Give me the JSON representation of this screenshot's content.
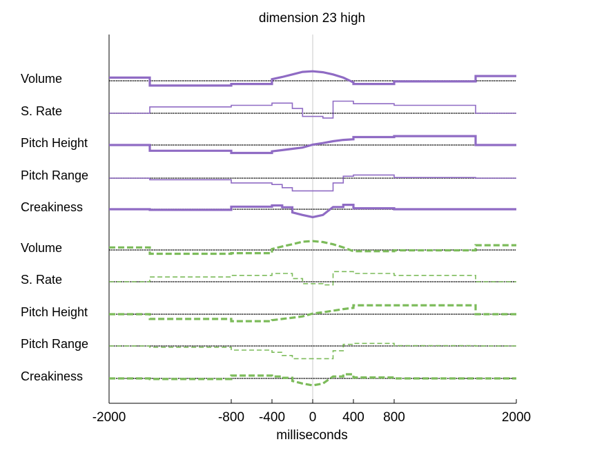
{
  "chart_data": {
    "type": "line",
    "title": "dimension 23 high",
    "xlabel": "milliseconds",
    "ylabel": "",
    "xlim": [
      -2000,
      2000
    ],
    "xticks": [
      -2000,
      -800,
      -400,
      0,
      400,
      800,
      2000
    ],
    "xtick_labels": [
      "-2000",
      "-800",
      "-400",
      "0",
      "400",
      "800",
      "2000"
    ],
    "center_line_x": 0,
    "grid": false,
    "legend": "none",
    "colors": {
      "upper": "#8f6bc4",
      "lower": "#7cbb5a",
      "baseline": "#000000",
      "center": "#c8c8c8"
    },
    "row_labels": [
      "Volume",
      "S. Rate",
      "Pitch Height",
      "Pitch Range",
      "Creakiness",
      "Volume",
      "S. Rate",
      "Pitch Height",
      "Pitch Range",
      "Creakiness"
    ],
    "series": [
      {
        "group": "upper",
        "style": "thick",
        "points": [
          [
            -2000,
            1.0
          ],
          [
            -1600,
            1.0
          ],
          [
            -1600,
            -1.5
          ],
          [
            -800,
            -1.5
          ],
          [
            -800,
            -1.0
          ],
          [
            -400,
            -1.0
          ],
          [
            -400,
            0.5
          ],
          [
            -300,
            1.2
          ],
          [
            -200,
            2.0
          ],
          [
            -100,
            2.8
          ],
          [
            0,
            3.0
          ],
          [
            100,
            2.7
          ],
          [
            200,
            2.0
          ],
          [
            300,
            1.0
          ],
          [
            400,
            -0.5
          ],
          [
            400,
            -1.0
          ],
          [
            800,
            -1.0
          ],
          [
            800,
            -0.2
          ],
          [
            1600,
            -0.2
          ],
          [
            1600,
            1.5
          ],
          [
            2000,
            1.5
          ]
        ]
      },
      {
        "group": "upper",
        "style": "thin",
        "points": [
          [
            -2000,
            0
          ],
          [
            -1600,
            0
          ],
          [
            -1600,
            2.0
          ],
          [
            -800,
            2.0
          ],
          [
            -800,
            2.5
          ],
          [
            -400,
            2.5
          ],
          [
            -400,
            3.2
          ],
          [
            -200,
            3.2
          ],
          [
            -200,
            1.5
          ],
          [
            -100,
            1.5
          ],
          [
            -100,
            -1.0
          ],
          [
            0,
            -1.0
          ],
          [
            100,
            -1.0
          ],
          [
            100,
            -1.5
          ],
          [
            200,
            -1.5
          ],
          [
            200,
            3.8
          ],
          [
            400,
            3.8
          ],
          [
            400,
            3.0
          ],
          [
            800,
            3.0
          ],
          [
            800,
            2.5
          ],
          [
            1600,
            2.5
          ],
          [
            1600,
            0
          ],
          [
            2000,
            0
          ]
        ]
      },
      {
        "group": "upper",
        "style": "thick",
        "points": [
          [
            -2000,
            0
          ],
          [
            -1600,
            0
          ],
          [
            -1600,
            -1.8
          ],
          [
            -800,
            -1.8
          ],
          [
            -800,
            -2.5
          ],
          [
            -400,
            -2.5
          ],
          [
            -400,
            -2.0
          ],
          [
            -300,
            -1.6
          ],
          [
            -200,
            -1.2
          ],
          [
            -100,
            -0.8
          ],
          [
            0,
            0.1
          ],
          [
            100,
            0.6
          ],
          [
            200,
            1.2
          ],
          [
            300,
            1.6
          ],
          [
            400,
            1.8
          ],
          [
            400,
            2.5
          ],
          [
            800,
            2.5
          ],
          [
            800,
            2.8
          ],
          [
            1600,
            2.8
          ],
          [
            1600,
            0
          ],
          [
            2000,
            0
          ]
        ]
      },
      {
        "group": "upper",
        "style": "thin",
        "points": [
          [
            -2000,
            0
          ],
          [
            -1600,
            0
          ],
          [
            -1600,
            -0.5
          ],
          [
            -800,
            -0.5
          ],
          [
            -800,
            -1.5
          ],
          [
            -400,
            -1.5
          ],
          [
            -400,
            -2.0
          ],
          [
            -300,
            -2.0
          ],
          [
            -300,
            -3.0
          ],
          [
            -200,
            -3.0
          ],
          [
            -200,
            -4.0
          ],
          [
            0,
            -4.0
          ],
          [
            200,
            -4.0
          ],
          [
            200,
            -1.5
          ],
          [
            300,
            -1.5
          ],
          [
            300,
            0.6
          ],
          [
            400,
            0.6
          ],
          [
            400,
            1.0
          ],
          [
            800,
            1.0
          ],
          [
            800,
            0.2
          ],
          [
            1600,
            0.2
          ],
          [
            1600,
            0
          ],
          [
            2000,
            0
          ]
        ]
      },
      {
        "group": "upper",
        "style": "thick",
        "points": [
          [
            -2000,
            0
          ],
          [
            -1600,
            0
          ],
          [
            -1600,
            -0.2
          ],
          [
            -800,
            -0.2
          ],
          [
            -800,
            0.8
          ],
          [
            -400,
            0.8
          ],
          [
            -400,
            1.2
          ],
          [
            -300,
            1.2
          ],
          [
            -300,
            0.6
          ],
          [
            -200,
            0.6
          ],
          [
            -200,
            -1.0
          ],
          [
            -100,
            -1.8
          ],
          [
            0,
            -2.5
          ],
          [
            100,
            -1.8
          ],
          [
            200,
            0.7
          ],
          [
            300,
            0.7
          ],
          [
            300,
            1.4
          ],
          [
            400,
            1.4
          ],
          [
            400,
            0.3
          ],
          [
            800,
            0.3
          ],
          [
            800,
            0
          ],
          [
            2000,
            0
          ]
        ]
      },
      {
        "group": "lower",
        "style": "thick",
        "points": [
          [
            -2000,
            0.8
          ],
          [
            -1600,
            0.8
          ],
          [
            -1600,
            -1.2
          ],
          [
            -800,
            -1.2
          ],
          [
            -800,
            -1.0
          ],
          [
            -400,
            -1.0
          ],
          [
            -400,
            0.3
          ],
          [
            -300,
            1.1
          ],
          [
            -200,
            1.8
          ],
          [
            -100,
            2.6
          ],
          [
            0,
            2.8
          ],
          [
            100,
            2.5
          ],
          [
            200,
            1.8
          ],
          [
            300,
            0.8
          ],
          [
            400,
            -0.4
          ],
          [
            800,
            -0.4
          ],
          [
            800,
            -0.1
          ],
          [
            1600,
            -0.1
          ],
          [
            1600,
            1.5
          ],
          [
            2000,
            1.5
          ]
        ]
      },
      {
        "group": "lower",
        "style": "thin",
        "points": [
          [
            -2000,
            0
          ],
          [
            -1600,
            0
          ],
          [
            -1600,
            1.5
          ],
          [
            -800,
            1.5
          ],
          [
            -800,
            2.0
          ],
          [
            -400,
            2.0
          ],
          [
            -400,
            2.6
          ],
          [
            -200,
            2.6
          ],
          [
            -200,
            1.0
          ],
          [
            -100,
            1.0
          ],
          [
            -100,
            -0.6
          ],
          [
            0,
            -0.6
          ],
          [
            100,
            -0.6
          ],
          [
            100,
            -1.0
          ],
          [
            200,
            -1.0
          ],
          [
            200,
            3.2
          ],
          [
            400,
            3.2
          ],
          [
            400,
            2.6
          ],
          [
            800,
            2.6
          ],
          [
            800,
            2.0
          ],
          [
            1600,
            2.0
          ],
          [
            1600,
            0
          ],
          [
            2000,
            0
          ]
        ]
      },
      {
        "group": "lower",
        "style": "thick",
        "points": [
          [
            -2000,
            0
          ],
          [
            -1600,
            0
          ],
          [
            -1600,
            -1.5
          ],
          [
            -800,
            -1.5
          ],
          [
            -800,
            -2.2
          ],
          [
            -400,
            -2.2
          ],
          [
            -400,
            -1.9
          ],
          [
            -300,
            -1.5
          ],
          [
            -200,
            -1.1
          ],
          [
            -100,
            -0.7
          ],
          [
            0,
            0.2
          ],
          [
            100,
            0.6
          ],
          [
            200,
            1.1
          ],
          [
            300,
            1.6
          ],
          [
            400,
            2.0
          ],
          [
            400,
            2.8
          ],
          [
            800,
            2.8
          ],
          [
            1600,
            2.8
          ],
          [
            1600,
            0
          ],
          [
            2000,
            0
          ]
        ]
      },
      {
        "group": "lower",
        "style": "thin",
        "points": [
          [
            -2000,
            0
          ],
          [
            -1600,
            0
          ],
          [
            -1600,
            -0.4
          ],
          [
            -800,
            -0.4
          ],
          [
            -800,
            -1.3
          ],
          [
            -400,
            -1.3
          ],
          [
            -400,
            -2.0
          ],
          [
            -300,
            -2.0
          ],
          [
            -300,
            -3.0
          ],
          [
            -200,
            -3.0
          ],
          [
            -200,
            -4.0
          ],
          [
            0,
            -4.0
          ],
          [
            200,
            -4.0
          ],
          [
            200,
            -1.5
          ],
          [
            300,
            -1.5
          ],
          [
            300,
            0.5
          ],
          [
            400,
            0.5
          ],
          [
            400,
            0.8
          ],
          [
            800,
            0.8
          ],
          [
            800,
            0.1
          ],
          [
            1600,
            0.1
          ],
          [
            1600,
            0
          ],
          [
            2000,
            0
          ]
        ]
      },
      {
        "group": "lower",
        "style": "thick",
        "points": [
          [
            -2000,
            0
          ],
          [
            -1600,
            0
          ],
          [
            -1600,
            -0.2
          ],
          [
            -800,
            -0.2
          ],
          [
            -800,
            0.9
          ],
          [
            -400,
            0.9
          ],
          [
            -400,
            0.6
          ],
          [
            -300,
            0.6
          ],
          [
            -300,
            0.2
          ],
          [
            -200,
            0.2
          ],
          [
            -200,
            -0.8
          ],
          [
            -100,
            -1.6
          ],
          [
            0,
            -2.2
          ],
          [
            100,
            -1.6
          ],
          [
            200,
            0.6
          ],
          [
            300,
            0.6
          ],
          [
            300,
            1.3
          ],
          [
            400,
            1.3
          ],
          [
            400,
            0.3
          ],
          [
            800,
            0.3
          ],
          [
            800,
            0
          ],
          [
            2000,
            0
          ]
        ]
      }
    ]
  }
}
